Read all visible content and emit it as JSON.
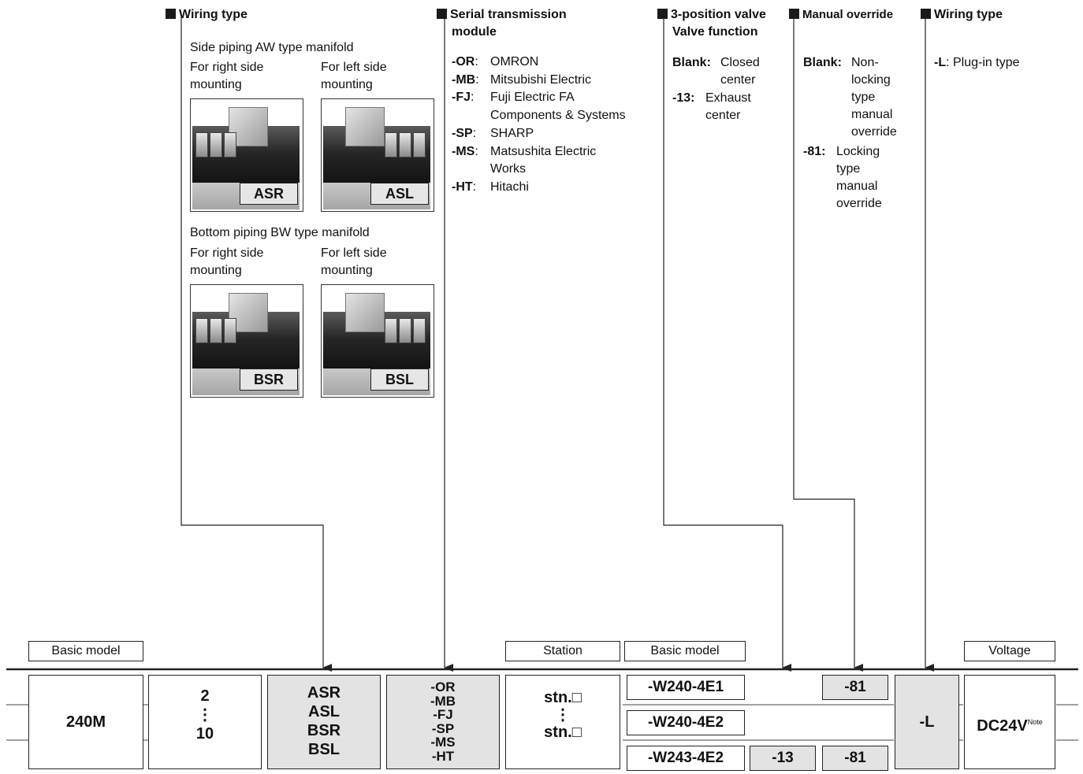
{
  "sections": {
    "wiring_type_1": {
      "title": "Wiring type",
      "side_label": "Side piping AW type manifold",
      "bottom_label": "Bottom piping BW type manifold",
      "right_line1": "For right side",
      "right_line2": "mounting",
      "left_line1": "For left side",
      "left_line2": "mounting",
      "photo_tags": [
        "ASR",
        "ASL",
        "BSR",
        "BSL"
      ]
    },
    "serial": {
      "title_line1": "Serial transmission",
      "title_line2": "module",
      "items": [
        {
          "code": "-OR",
          "sep": ":",
          "desc": [
            "OMRON"
          ]
        },
        {
          "code": "-MB",
          "sep": ":",
          "desc": [
            "Mitsubishi Electric"
          ]
        },
        {
          "code": "-FJ",
          "sep": ":",
          "desc": [
            "Fuji Electric FA",
            "Components & Systems"
          ]
        },
        {
          "code": "-SP",
          "sep": ":",
          "desc": [
            "SHARP"
          ]
        },
        {
          "code": "-MS",
          "sep": ":",
          "desc": [
            "Matsushita Electric",
            "Works"
          ]
        },
        {
          "code": "-HT",
          "sep": ":",
          "desc": [
            "Hitachi"
          ]
        }
      ]
    },
    "valve": {
      "title_line1": "3-position valve",
      "title_line2": "Valve function",
      "blank_code": "Blank:",
      "blank_desc1": "Closed",
      "blank_desc2": "center",
      "e13_code": "-13:",
      "e13_desc1": "Exhaust",
      "e13_desc2": "center"
    },
    "manual": {
      "title": "Manual override",
      "blank_code": "Blank:",
      "blank_desc": [
        "Non-",
        "locking",
        "type",
        "manual",
        "override"
      ],
      "e81_code": "-81:",
      "e81_desc": [
        "Locking",
        "type",
        "manual",
        "override"
      ]
    },
    "wiring_type_2": {
      "title": "Wiring type",
      "code": "-L",
      "desc": ": Plug-in type"
    }
  },
  "labels": {
    "basic_model_1": "Basic model",
    "station": "Station",
    "basic_model_2": "Basic model",
    "voltage": "Voltage"
  },
  "codes": {
    "model": "240M",
    "stations_top": "2",
    "stations_dots": "⋮",
    "stations_bottom": "10",
    "wiring": [
      "ASR",
      "ASL",
      "BSR",
      "BSL"
    ],
    "serial": [
      "-OR",
      "-MB",
      "-FJ",
      "-SP",
      "-MS",
      "-HT"
    ],
    "stn_top": "stn.□",
    "stn_dots": "⋮",
    "stn_bottom": "stn.□",
    "valve_models": [
      "-W240-4E1",
      "-W240-4E2",
      "-W243-4E2"
    ],
    "override_1": "-81",
    "exhaust": "-13",
    "override_3": "-81",
    "plug": "-L",
    "voltage_main": "DC24V",
    "voltage_note": "Note"
  }
}
